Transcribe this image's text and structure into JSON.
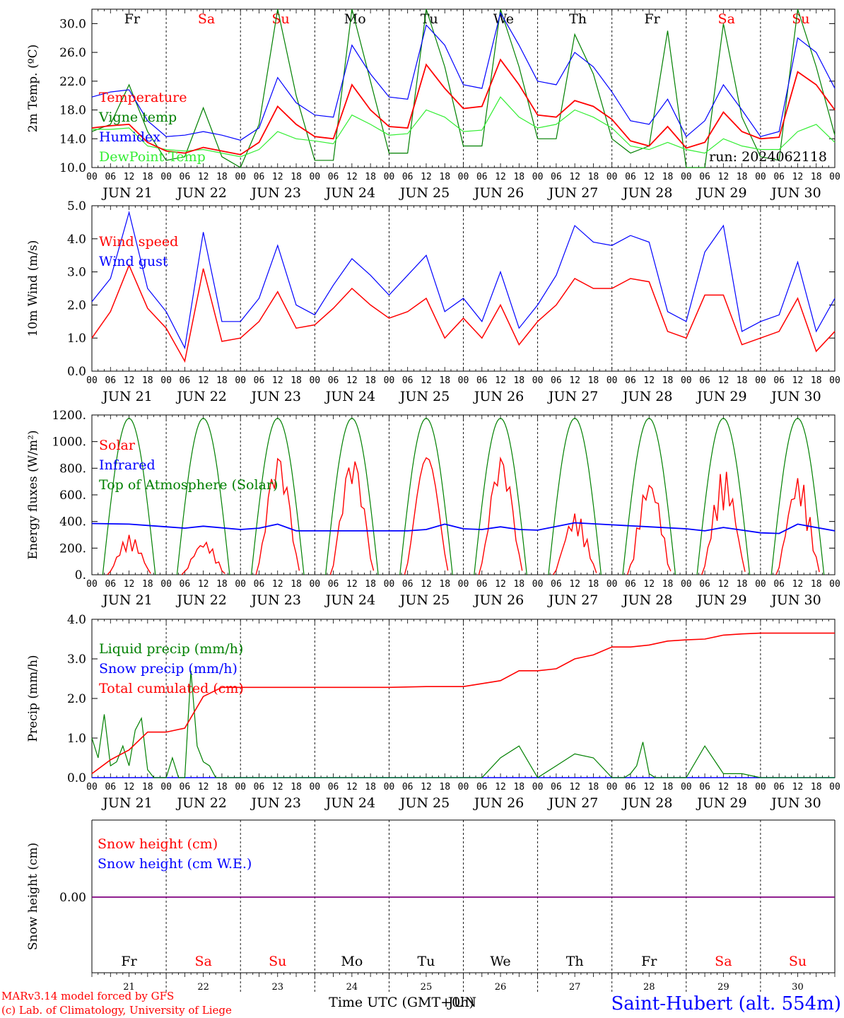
{
  "credits": {
    "model": "MARv3.14 model forced by GFS",
    "lab": "(c) Lab. of Climatology, University of Liege"
  },
  "station": "Saint-Hubert (alt. 554m)",
  "x_axis_title": "Time UTC (GMT+0h)",
  "x_axis_title_overlay": "JUN",
  "colors": {
    "red": "#ff0000",
    "green": "#008000",
    "blue": "#0000ff",
    "lightgreen": "#33ee33",
    "purple": "#800080"
  },
  "days": [
    {
      "date": "JUN 21",
      "dom": "21",
      "dow": "Fr",
      "weekend": false
    },
    {
      "date": "JUN 22",
      "dom": "22",
      "dow": "Sa",
      "weekend": true
    },
    {
      "date": "JUN 23",
      "dom": "23",
      "dow": "Su",
      "weekend": true
    },
    {
      "date": "JUN 24",
      "dom": "24",
      "dow": "Mo",
      "weekend": false
    },
    {
      "date": "JUN 25",
      "dom": "25",
      "dow": "Tu",
      "weekend": false
    },
    {
      "date": "JUN 26",
      "dom": "26",
      "dow": "We",
      "weekend": false
    },
    {
      "date": "JUN 27",
      "dom": "27",
      "dow": "Th",
      "weekend": false
    },
    {
      "date": "JUN 28",
      "dom": "28",
      "dow": "Fr",
      "weekend": false
    },
    {
      "date": "JUN 29",
      "dom": "29",
      "dow": "Sa",
      "weekend": true
    },
    {
      "date": "JUN 30",
      "dom": "30",
      "dow": "Su",
      "weekend": true
    }
  ],
  "hour_labels": [
    "00",
    "06",
    "12",
    "18"
  ],
  "chart_data": [
    {
      "type": "line",
      "ylabel": "2m Temp. (ºC)",
      "ylim": [
        10,
        32
      ],
      "yticks": [
        "10.0",
        "14.0",
        "18.0",
        "22.0",
        "26.0",
        "30.0"
      ],
      "annotation": "run: 2024062118",
      "x_unit": "hours since 2024-06-21 00 UTC",
      "series": [
        {
          "name": "Temperature",
          "color": "#ff0000",
          "x": [
            0,
            6,
            12,
            18,
            24,
            30,
            36,
            42,
            48,
            54,
            60,
            66,
            72,
            78,
            84,
            90,
            96,
            102,
            108,
            114,
            120,
            126,
            132,
            138,
            144,
            150,
            156,
            162,
            168,
            174,
            180,
            186,
            192,
            198,
            204,
            210,
            216,
            222,
            228,
            234,
            240
          ],
          "y": [
            15.5,
            15.8,
            16.0,
            13.5,
            12.3,
            12.0,
            12.8,
            12.3,
            11.8,
            13.5,
            18.5,
            16.0,
            14.3,
            14.0,
            21.5,
            18.0,
            15.7,
            15.5,
            24.3,
            21.0,
            18.2,
            18.5,
            25.0,
            21.5,
            17.3,
            17.0,
            19.3,
            18.5,
            16.7,
            13.7,
            13.0,
            15.7,
            12.7,
            13.5,
            17.7,
            15.0,
            14.0,
            14.2,
            23.3,
            21.5,
            18.0
          ]
        },
        {
          "name": "Vigne temp",
          "color": "#008000",
          "x": [
            0,
            6,
            12,
            18,
            24,
            30,
            36,
            42,
            48,
            54,
            60,
            66,
            72,
            78,
            84,
            90,
            96,
            102,
            108,
            114,
            120,
            126,
            132,
            138,
            144,
            150,
            156,
            162,
            168,
            174,
            180,
            186,
            192,
            198,
            204,
            210,
            216,
            222,
            228,
            234,
            240
          ],
          "y": [
            15.0,
            16.0,
            21.5,
            15.0,
            11.0,
            11.5,
            18.3,
            11.5,
            10.0,
            16.0,
            40.0,
            20.0,
            11.0,
            11.0,
            33.0,
            22.0,
            12.0,
            12.0,
            33.0,
            24.0,
            13.0,
            13.0,
            36.0,
            24.0,
            14.0,
            14.0,
            28.5,
            23.0,
            14.0,
            12.0,
            13.0,
            29.0,
            10.0,
            10.0,
            30.0,
            17.0,
            11.5,
            11.0,
            35.0,
            24.0,
            14.5
          ]
        },
        {
          "name": "Humidex",
          "color": "#0000ff",
          "x": [
            0,
            6,
            12,
            18,
            24,
            30,
            36,
            42,
            48,
            54,
            60,
            66,
            72,
            78,
            84,
            90,
            96,
            102,
            108,
            114,
            120,
            126,
            132,
            138,
            144,
            150,
            156,
            162,
            168,
            174,
            180,
            186,
            192,
            198,
            204,
            210,
            216,
            222,
            228,
            234,
            240
          ],
          "y": [
            19.8,
            20.5,
            20.8,
            16.5,
            14.3,
            14.5,
            15.0,
            14.5,
            13.8,
            15.5,
            22.5,
            19.0,
            17.3,
            17.0,
            27.0,
            23.0,
            19.8,
            19.5,
            29.8,
            27.0,
            21.5,
            21.0,
            31.5,
            27.0,
            22.0,
            21.5,
            26.0,
            24.0,
            20.5,
            16.5,
            16.0,
            19.5,
            14.3,
            16.5,
            21.5,
            18.0,
            14.3,
            15.0,
            28.0,
            26.0,
            21.0
          ]
        },
        {
          "name": "DewPoint Temp",
          "color": "#33ee33",
          "x": [
            0,
            6,
            12,
            18,
            24,
            30,
            36,
            42,
            48,
            54,
            60,
            66,
            72,
            78,
            84,
            90,
            96,
            102,
            108,
            114,
            120,
            126,
            132,
            138,
            144,
            150,
            156,
            162,
            168,
            174,
            180,
            186,
            192,
            198,
            204,
            210,
            216,
            222,
            228,
            234,
            240
          ],
          "y": [
            15.3,
            15.3,
            15.5,
            13.0,
            12.5,
            12.3,
            12.5,
            12.0,
            11.5,
            12.5,
            15.0,
            14.0,
            13.7,
            13.3,
            17.3,
            16.0,
            14.5,
            14.7,
            18.0,
            17.0,
            15.0,
            15.2,
            19.8,
            17.0,
            15.5,
            16.0,
            18.0,
            17.0,
            15.5,
            13.0,
            12.5,
            13.5,
            12.5,
            12.0,
            14.0,
            13.0,
            12.5,
            12.5,
            15.0,
            16.0,
            13.5
          ]
        }
      ]
    },
    {
      "type": "line",
      "ylabel": "10m Wind (m/s)",
      "ylim": [
        0,
        5
      ],
      "yticks": [
        "0.0",
        "1.0",
        "2.0",
        "3.0",
        "4.0",
        "5.0"
      ],
      "series": [
        {
          "name": "Wind speed",
          "color": "#ff0000",
          "x": [
            0,
            6,
            12,
            18,
            24,
            30,
            36,
            42,
            48,
            54,
            60,
            66,
            72,
            78,
            84,
            90,
            96,
            102,
            108,
            114,
            120,
            126,
            132,
            138,
            144,
            150,
            156,
            162,
            168,
            174,
            180,
            186,
            192,
            198,
            204,
            210,
            216,
            222,
            228,
            234,
            240
          ],
          "y": [
            1.0,
            1.8,
            3.2,
            1.9,
            1.3,
            0.3,
            3.1,
            0.9,
            1.0,
            1.5,
            2.4,
            1.3,
            1.4,
            1.9,
            2.5,
            2.0,
            1.6,
            1.8,
            2.2,
            1.0,
            1.6,
            1.0,
            2.0,
            0.8,
            1.5,
            2.0,
            2.8,
            2.5,
            2.5,
            2.8,
            2.7,
            1.2,
            1.0,
            2.3,
            2.3,
            0.8,
            1.0,
            1.2,
            2.2,
            0.6,
            1.2
          ]
        },
        {
          "name": "Wind gust",
          "color": "#0000ff",
          "x": [
            0,
            6,
            12,
            18,
            24,
            30,
            36,
            42,
            48,
            54,
            60,
            66,
            72,
            78,
            84,
            90,
            96,
            102,
            108,
            114,
            120,
            126,
            132,
            138,
            144,
            150,
            156,
            162,
            168,
            174,
            180,
            186,
            192,
            198,
            204,
            210,
            216,
            222,
            228,
            234,
            240
          ],
          "y": [
            2.1,
            2.8,
            4.8,
            2.5,
            1.8,
            0.7,
            4.2,
            1.5,
            1.5,
            2.2,
            3.8,
            2.0,
            1.7,
            2.6,
            3.4,
            2.9,
            2.3,
            2.9,
            3.5,
            1.8,
            2.2,
            1.5,
            3.0,
            1.3,
            2.0,
            2.9,
            4.4,
            3.9,
            3.8,
            4.1,
            3.9,
            1.8,
            1.5,
            3.6,
            4.4,
            1.2,
            1.5,
            1.7,
            3.3,
            1.2,
            2.2
          ]
        }
      ]
    },
    {
      "type": "line",
      "ylabel": "Energy fluxes (W/m²)",
      "ylim": [
        0,
        1200
      ],
      "yticks": [
        "0.",
        "200.",
        "400.",
        "600.",
        "800.",
        "1000.",
        "1200."
      ],
      "series": [
        {
          "name": "Solar",
          "color": "#ff0000",
          "daily_peak": [
            300,
            260,
            900,
            890,
            880,
            890,
            470,
            750,
            800,
            760
          ]
        },
        {
          "name": "Infrared",
          "color": "#0000ff",
          "x": [
            0,
            12,
            24,
            30,
            36,
            48,
            54,
            60,
            66,
            72,
            84,
            96,
            102,
            108,
            114,
            120,
            126,
            132,
            138,
            144,
            156,
            168,
            180,
            192,
            198,
            204,
            210,
            216,
            222,
            228,
            240
          ],
          "y": [
            385,
            380,
            360,
            350,
            365,
            340,
            350,
            380,
            330,
            330,
            330,
            330,
            330,
            340,
            380,
            345,
            340,
            360,
            340,
            335,
            390,
            375,
            360,
            345,
            330,
            355,
            335,
            315,
            310,
            380,
            330
          ]
        },
        {
          "name": "Top of Atmosphere (Solar)",
          "color": "#008000",
          "daily_peak": [
            1175,
            1175,
            1175,
            1175,
            1175,
            1175,
            1175,
            1175,
            1175,
            1175
          ]
        }
      ]
    },
    {
      "type": "line",
      "ylabel": "Precip (mm/h)",
      "ylim": [
        0,
        4
      ],
      "yticks": [
        "0.0",
        "1.0",
        "2.0",
        "3.0",
        "4.0"
      ],
      "series": [
        {
          "name": "Liquid precip (mm/h)",
          "color": "#008000",
          "x": [
            0,
            2,
            4,
            6,
            8,
            10,
            12,
            14,
            16,
            18,
            20,
            22,
            24,
            26,
            28,
            30,
            32,
            34,
            36,
            38,
            40,
            42,
            44,
            46,
            48,
            120,
            126,
            132,
            138,
            144,
            150,
            156,
            162,
            168,
            172,
            174,
            176,
            178,
            180,
            182,
            186,
            190,
            192,
            198,
            204,
            210,
            216,
            240
          ],
          "y": [
            1.0,
            0.5,
            1.6,
            0.3,
            0.4,
            0.8,
            0.3,
            1.2,
            1.5,
            0.2,
            0.0,
            0.0,
            0.0,
            0.5,
            0.0,
            0.0,
            2.7,
            0.8,
            0.4,
            0.3,
            0.0,
            0.0,
            0.0,
            0.0,
            0.0,
            0.0,
            0.0,
            0.5,
            0.8,
            0.0,
            0.3,
            0.6,
            0.5,
            0.0,
            0.0,
            0.1,
            0.3,
            0.9,
            0.1,
            0.0,
            0.0,
            0.0,
            0.0,
            0.8,
            0.1,
            0.1,
            0.0,
            0.0
          ]
        },
        {
          "name": "Snow precip (mm/h)",
          "color": "#0000ff",
          "x": [
            0,
            240
          ],
          "y": [
            0,
            0
          ]
        },
        {
          "name": "Total cumulated (cm)",
          "color": "#ff0000",
          "x": [
            0,
            6,
            12,
            18,
            24,
            30,
            36,
            42,
            48,
            60,
            72,
            84,
            96,
            108,
            120,
            132,
            138,
            144,
            150,
            156,
            162,
            168,
            174,
            180,
            186,
            192,
            198,
            204,
            210,
            216,
            222,
            228,
            234,
            240
          ],
          "y": [
            0.1,
            0.45,
            0.7,
            1.15,
            1.15,
            1.25,
            2.05,
            2.28,
            2.28,
            2.28,
            2.28,
            2.28,
            2.28,
            2.3,
            2.3,
            2.45,
            2.7,
            2.7,
            2.75,
            3.0,
            3.1,
            3.3,
            3.3,
            3.35,
            3.45,
            3.48,
            3.5,
            3.6,
            3.63,
            3.65,
            3.65,
            3.65,
            3.65,
            3.65
          ]
        }
      ]
    },
    {
      "type": "line",
      "ylabel": "Snow height (cm)",
      "yticks": [
        "0.00"
      ],
      "series": [
        {
          "name": "Snow height (cm)",
          "color": "#ff0000",
          "x": [
            0,
            240
          ],
          "y": [
            0,
            0
          ]
        },
        {
          "name": "Snow height (cm W.E.)",
          "color": "#0000ff",
          "x": [
            0,
            240
          ],
          "y": [
            0,
            0
          ]
        }
      ]
    }
  ]
}
